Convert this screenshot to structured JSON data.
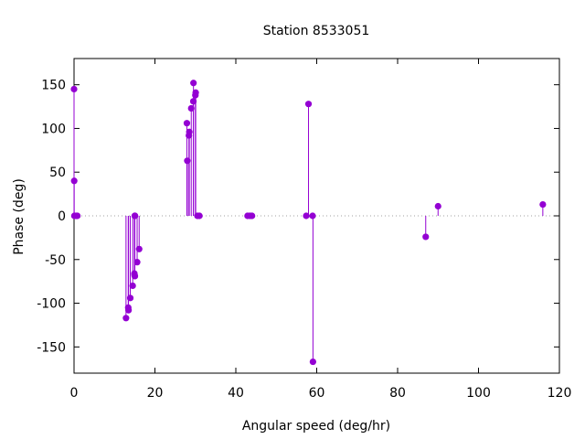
{
  "chart_data": {
    "type": "scatter",
    "style": "impulses-with-points",
    "title": "Station 8533051",
    "xlabel": "Angular speed (deg/hr)",
    "ylabel": "Phase (deg)",
    "xlim": [
      0,
      120
    ],
    "ylim": [
      -180,
      180
    ],
    "xticks": [
      0,
      20,
      40,
      60,
      80,
      100,
      120
    ],
    "yticks": [
      -150,
      -100,
      -50,
      0,
      50,
      100,
      150
    ],
    "zero_line": "dotted",
    "grid": false,
    "color": "#9400d3",
    "series": [
      {
        "x": [
          0.0,
          0.04,
          0.08,
          0.5,
          0.82,
          12.85,
          13.4,
          13.47,
          13.9,
          14.5,
          14.92,
          14.96,
          15.0,
          15.04,
          15.08,
          15.6,
          16.1,
          27.9,
          28.0,
          28.4,
          28.5,
          28.98,
          29.5,
          29.53,
          30.0,
          30.08,
          30.5,
          31.0,
          42.9,
          43.5,
          44.0,
          57.4,
          57.97,
          58.98,
          59.07,
          86.95,
          90.0,
          115.9
        ],
        "y": [
          145,
          40,
          0,
          0,
          0,
          -117,
          -105,
          -108,
          -94,
          -80,
          -66,
          -68,
          0,
          -69,
          0,
          -53,
          -38,
          106,
          63,
          92,
          96,
          123,
          131,
          152,
          138,
          141,
          0,
          0,
          0,
          0,
          0,
          0,
          128,
          0,
          -167,
          -24,
          11,
          13
        ]
      }
    ]
  }
}
